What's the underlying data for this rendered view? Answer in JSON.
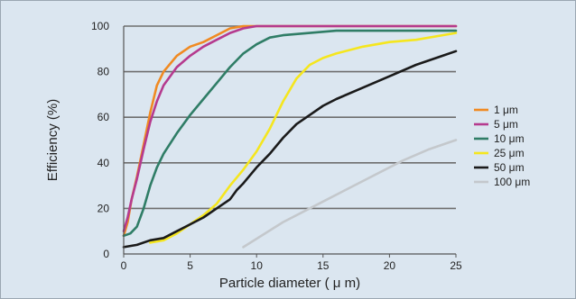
{
  "chart_data": {
    "type": "line",
    "title": "",
    "xlabel": "Particle diameter ( μ m)",
    "ylabel": "Efficiency (%)",
    "xlim": [
      0,
      25
    ],
    "ylim": [
      0,
      100
    ],
    "x_ticks": [
      0,
      5,
      10,
      15,
      20,
      25
    ],
    "y_ticks": [
      0,
      20,
      40,
      60,
      80,
      100
    ],
    "x_tick_labels": [
      "0",
      "5",
      "10",
      "15",
      "20",
      "25"
    ],
    "y_tick_labels": [
      "0",
      "20",
      "40",
      "60",
      "80",
      "100"
    ],
    "grid": "horizontal",
    "legend_position": "right",
    "series": [
      {
        "name": "1 μm",
        "color": "#f08a22",
        "points": [
          [
            0,
            8
          ],
          [
            0.3,
            14
          ],
          [
            0.6,
            24
          ],
          [
            1,
            34
          ],
          [
            1.5,
            48
          ],
          [
            2,
            62
          ],
          [
            2.5,
            74
          ],
          [
            3,
            80
          ],
          [
            4,
            87
          ],
          [
            5,
            91
          ],
          [
            6,
            93
          ],
          [
            7,
            96
          ],
          [
            8,
            99
          ],
          [
            9,
            100
          ],
          [
            25,
            100
          ]
        ]
      },
      {
        "name": "5 μm",
        "color": "#b53a8e",
        "points": [
          [
            0,
            10
          ],
          [
            0.3,
            16
          ],
          [
            0.6,
            24
          ],
          [
            1,
            33
          ],
          [
            1.5,
            46
          ],
          [
            2,
            58
          ],
          [
            2.5,
            67
          ],
          [
            3,
            74
          ],
          [
            4,
            82
          ],
          [
            5,
            87
          ],
          [
            6,
            91
          ],
          [
            7,
            94
          ],
          [
            8,
            97
          ],
          [
            9,
            99
          ],
          [
            10,
            100
          ],
          [
            25,
            100
          ]
        ]
      },
      {
        "name": "10 μm",
        "color": "#2f7d66",
        "points": [
          [
            0,
            8
          ],
          [
            0.5,
            9
          ],
          [
            1,
            12
          ],
          [
            1.5,
            20
          ],
          [
            2,
            30
          ],
          [
            2.5,
            38
          ],
          [
            3,
            44
          ],
          [
            4,
            53
          ],
          [
            5,
            61
          ],
          [
            6,
            68
          ],
          [
            7,
            75
          ],
          [
            8,
            82
          ],
          [
            9,
            88
          ],
          [
            10,
            92
          ],
          [
            11,
            95
          ],
          [
            12,
            96
          ],
          [
            14,
            97
          ],
          [
            16,
            98
          ],
          [
            18,
            98
          ],
          [
            25,
            98
          ]
        ]
      },
      {
        "name": "25 μm",
        "color": "#f5e61e",
        "points": [
          [
            2,
            5
          ],
          [
            3,
            6
          ],
          [
            4,
            9
          ],
          [
            5,
            13
          ],
          [
            6,
            17
          ],
          [
            7,
            22
          ],
          [
            8,
            30
          ],
          [
            9,
            37
          ],
          [
            10,
            45
          ],
          [
            11,
            55
          ],
          [
            12,
            67
          ],
          [
            13,
            77
          ],
          [
            14,
            83
          ],
          [
            15,
            86
          ],
          [
            16,
            88
          ],
          [
            18,
            91
          ],
          [
            20,
            93
          ],
          [
            22,
            94
          ],
          [
            24,
            96
          ],
          [
            25,
            97
          ]
        ]
      },
      {
        "name": "50 μm",
        "color": "#1a1a1a",
        "points": [
          [
            0,
            3
          ],
          [
            1,
            4
          ],
          [
            2,
            6
          ],
          [
            3,
            7
          ],
          [
            4,
            10
          ],
          [
            5,
            13
          ],
          [
            6,
            16
          ],
          [
            7,
            20
          ],
          [
            8,
            24
          ],
          [
            8.5,
            28
          ],
          [
            9,
            31
          ],
          [
            10,
            38
          ],
          [
            11,
            44
          ],
          [
            12,
            51
          ],
          [
            13,
            57
          ],
          [
            14,
            61
          ],
          [
            15,
            65
          ],
          [
            16,
            68
          ],
          [
            18,
            73
          ],
          [
            20,
            78
          ],
          [
            22,
            83
          ],
          [
            24,
            87
          ],
          [
            25,
            89
          ]
        ]
      },
      {
        "name": "100 μm",
        "color": "#c4c8cc",
        "points": [
          [
            9,
            3
          ],
          [
            12,
            14
          ],
          [
            15,
            23
          ],
          [
            18,
            32
          ],
          [
            21,
            41
          ],
          [
            23,
            46
          ],
          [
            25,
            50
          ]
        ]
      }
    ]
  }
}
